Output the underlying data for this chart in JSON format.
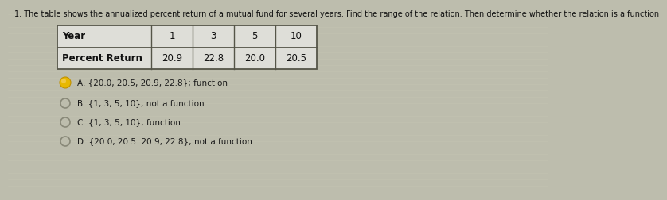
{
  "question": "1. The table shows the annualized percent return of a mutual fund for several years. Find the range of the relation. Then determine whether the relation is a function",
  "table_headers": [
    "Year",
    "1",
    "3",
    "5",
    "10"
  ],
  "table_row": [
    "Percent Return",
    "20.9",
    "22.8",
    "20.0",
    "20.5"
  ],
  "options": [
    {
      "label": "A.",
      "text": " {20.0, 20.5, 20.9, 22.8}; function",
      "selected": true
    },
    {
      "label": "B.",
      "text": " {1, 3, 5, 10}; not a function",
      "selected": false
    },
    {
      "label": "C.",
      "text": " {1, 3, 5, 10}; function",
      "selected": false
    },
    {
      "label": "D.",
      "text": " {20.0, 20.5  20.9, 22.8}; not a function",
      "selected": false
    }
  ],
  "bg_color": "#bdbdad",
  "table_bg": "#deded8",
  "border_color": "#555548",
  "selected_color": "#e8b800",
  "text_color": "#111111",
  "option_text_color": "#1a1a1a",
  "circle_color": "#888878",
  "question_fontsize": 7.0,
  "table_fontsize": 8.5,
  "option_fontsize": 7.5
}
